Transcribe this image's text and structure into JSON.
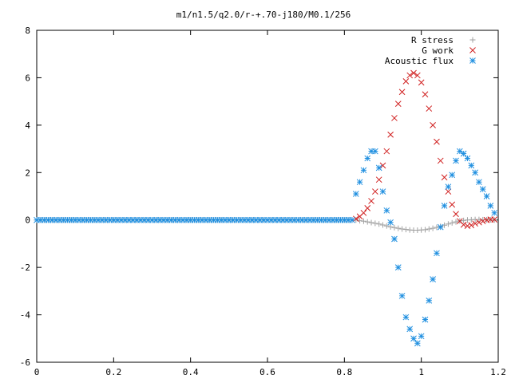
{
  "chart_data": {
    "type": "scatter",
    "title": "m1/n1.5/q2.0/r-+.70-j180/M0.1/256",
    "xlabel": "",
    "ylabel": "",
    "xlim": [
      0,
      1.2
    ],
    "ylim": [
      -6,
      8
    ],
    "x_ticks": [
      "0",
      "0.2",
      "0.4",
      "0.6",
      "0.8",
      "1",
      "1.2"
    ],
    "y_ticks": [
      "-6",
      "-4",
      "-2",
      "0",
      "2",
      "4",
      "6",
      "8"
    ],
    "legend_position": "top-right",
    "grid": false,
    "series": [
      {
        "name": "R stress",
        "marker": "+",
        "color": "#a0a0a0",
        "x": [
          0.0,
          0.1,
          0.2,
          0.3,
          0.4,
          0.5,
          0.6,
          0.7,
          0.8,
          0.83,
          0.84,
          0.85,
          0.86,
          0.87,
          0.88,
          0.89,
          0.9,
          0.91,
          0.92,
          0.93,
          0.94,
          0.95,
          0.96,
          0.97,
          0.98,
          0.99,
          1.0,
          1.01,
          1.02,
          1.03,
          1.04,
          1.05,
          1.06,
          1.07,
          1.08,
          1.09,
          1.1,
          1.11,
          1.12,
          1.13,
          1.14,
          1.15,
          1.16,
          1.17,
          1.18,
          1.19
        ],
        "y": [
          0,
          0,
          0,
          0,
          0,
          0,
          0,
          0,
          0,
          0,
          -0.03,
          -0.05,
          -0.08,
          -0.11,
          -0.14,
          -0.17,
          -0.21,
          -0.25,
          -0.29,
          -0.32,
          -0.35,
          -0.38,
          -0.4,
          -0.42,
          -0.43,
          -0.43,
          -0.42,
          -0.41,
          -0.38,
          -0.35,
          -0.31,
          -0.27,
          -0.22,
          -0.17,
          -0.12,
          -0.08,
          -0.04,
          -0.02,
          0,
          0.01,
          0.02,
          0.02,
          0.01,
          0.01,
          0.01,
          0
        ]
      },
      {
        "name": "G work",
        "marker": "x",
        "color": "#d02020",
        "x": [
          0.83,
          0.84,
          0.85,
          0.86,
          0.87,
          0.88,
          0.89,
          0.9,
          0.91,
          0.92,
          0.93,
          0.94,
          0.95,
          0.96,
          0.97,
          0.98,
          0.99,
          1.0,
          1.01,
          1.02,
          1.03,
          1.04,
          1.05,
          1.06,
          1.07,
          1.08,
          1.09,
          1.1,
          1.11,
          1.12,
          1.13,
          1.14,
          1.15,
          1.16,
          1.17,
          1.18,
          1.19
        ],
        "y": [
          0.05,
          0.15,
          0.3,
          0.5,
          0.8,
          1.2,
          1.7,
          2.3,
          2.9,
          3.6,
          4.3,
          4.9,
          5.4,
          5.85,
          6.1,
          6.2,
          6.1,
          5.8,
          5.3,
          4.7,
          4.0,
          3.3,
          2.5,
          1.8,
          1.2,
          0.65,
          0.25,
          -0.05,
          -0.2,
          -0.25,
          -0.22,
          -0.15,
          -0.1,
          -0.05,
          0,
          0.02,
          0.02
        ]
      },
      {
        "name": "Acoustic flux",
        "marker": "*",
        "color": "#1f8fe0",
        "x": [
          0.0,
          0.02,
          0.04,
          0.06,
          0.08,
          0.1,
          0.12,
          0.14,
          0.16,
          0.18,
          0.2,
          0.22,
          0.24,
          0.26,
          0.28,
          0.3,
          0.32,
          0.34,
          0.36,
          0.38,
          0.4,
          0.42,
          0.44,
          0.46,
          0.48,
          0.5,
          0.52,
          0.54,
          0.56,
          0.58,
          0.6,
          0.62,
          0.64,
          0.66,
          0.68,
          0.7,
          0.72,
          0.74,
          0.76,
          0.78,
          0.8,
          0.82,
          0.83,
          0.84,
          0.85,
          0.86,
          0.87,
          0.88,
          0.89,
          0.9,
          0.91,
          0.92,
          0.93,
          0.94,
          0.95,
          0.96,
          0.97,
          0.98,
          0.99,
          1.0,
          1.01,
          1.02,
          1.03,
          1.04,
          1.05,
          1.06,
          1.07,
          1.08,
          1.09,
          1.1,
          1.11,
          1.12,
          1.13,
          1.14,
          1.15,
          1.16,
          1.17,
          1.18,
          1.19
        ],
        "y": [
          0,
          0,
          0,
          0,
          0,
          0,
          0,
          0,
          0,
          0,
          0,
          0,
          0,
          0,
          0,
          0,
          0,
          0,
          0,
          0,
          0,
          0,
          0,
          0,
          0,
          0,
          0,
          0,
          0,
          0,
          0,
          0,
          0,
          0,
          0,
          0,
          0,
          0,
          0,
          0,
          0,
          0,
          1.1,
          1.6,
          2.1,
          2.6,
          2.9,
          2.9,
          2.2,
          1.2,
          0.4,
          -0.1,
          -0.8,
          -2.0,
          -3.2,
          -4.1,
          -4.6,
          -5.0,
          -5.2,
          -4.9,
          -4.2,
          -3.4,
          -2.5,
          -1.4,
          -0.3,
          0.6,
          1.4,
          1.9,
          2.5,
          2.9,
          2.8,
          2.6,
          2.3,
          2.0,
          1.6,
          1.3,
          1.0,
          0.6,
          0.3
        ]
      }
    ]
  }
}
